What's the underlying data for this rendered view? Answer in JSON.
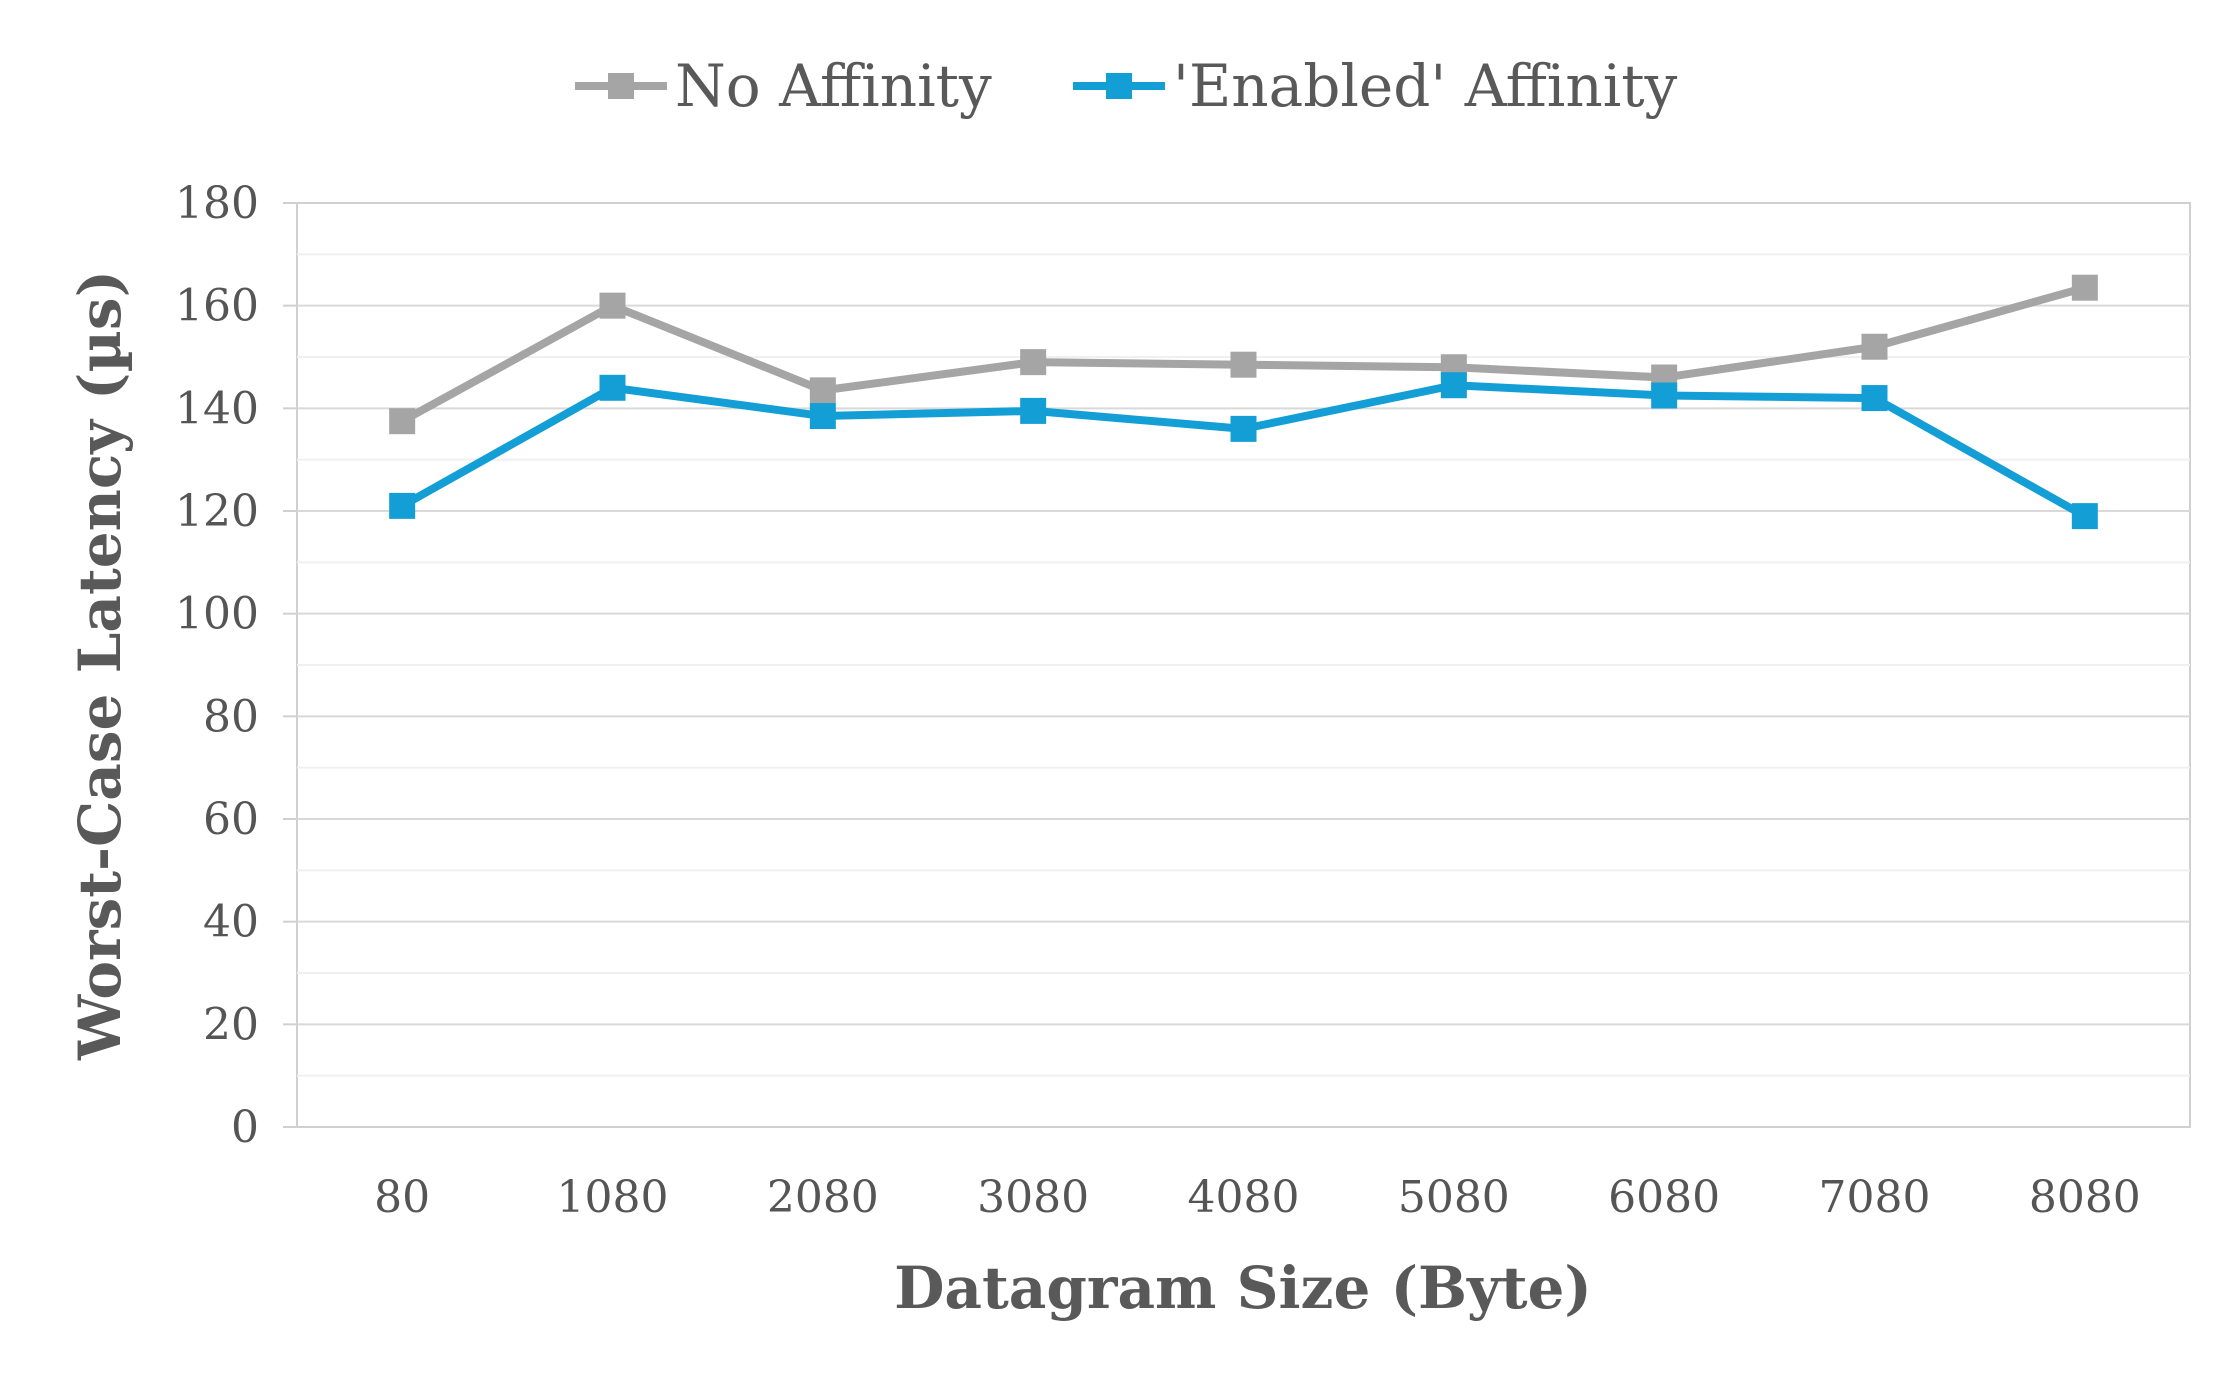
{
  "chart_data": {
    "type": "line",
    "xlabel": "Datagram Size (Byte)",
    "ylabel": "Worst-Case Latency (µs)",
    "categories": [
      "80",
      "1080",
      "2080",
      "3080",
      "4080",
      "5080",
      "6080",
      "7080",
      "8080"
    ],
    "ylim": [
      0,
      180
    ],
    "yticks": [
      0,
      20,
      40,
      60,
      80,
      100,
      120,
      140,
      160,
      180
    ],
    "grid": "horizontal",
    "legend_position": "top-center",
    "series": [
      {
        "name": "No Affinity",
        "color": "#A5A5A5",
        "values": [
          137.5,
          160,
          143.5,
          149,
          148.5,
          148,
          146,
          152,
          163.5
        ]
      },
      {
        "name": "'Enabled' Affinity",
        "color": "#139FD6",
        "values": [
          121,
          144,
          138.5,
          139.5,
          136,
          144.5,
          142.5,
          142,
          119
        ]
      }
    ]
  }
}
